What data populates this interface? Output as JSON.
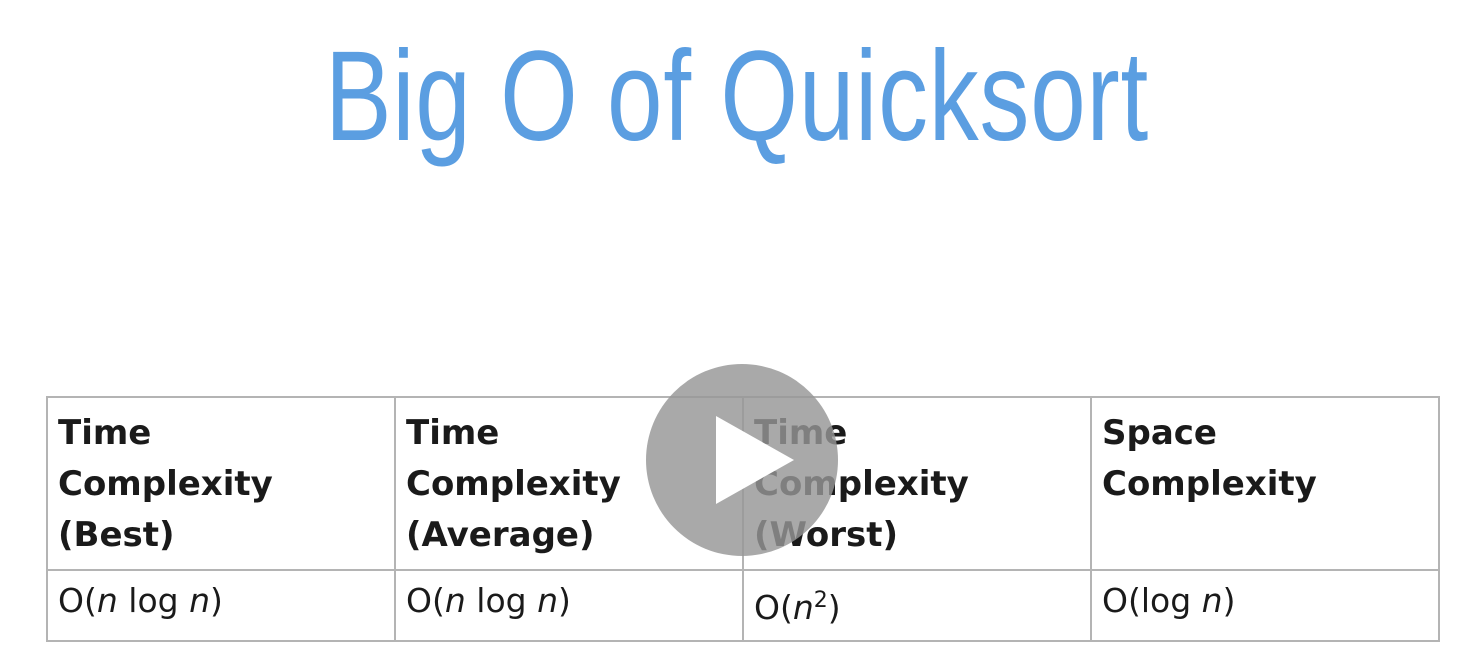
{
  "slide": {
    "title": "Big O of Quicksort"
  },
  "table": {
    "headers": [
      {
        "lines": [
          "Time",
          "Complexity",
          "(Best)"
        ]
      },
      {
        "lines": [
          "Time",
          "Complexity",
          "(Average)"
        ]
      },
      {
        "lines": [
          "Time",
          "Complexity",
          "(Worst)"
        ]
      },
      {
        "lines": [
          "Space",
          "Complexity"
        ]
      }
    ],
    "row": [
      {
        "prefix": "O(",
        "var1": "n",
        "mid": " log ",
        "var2": "n",
        "suffix": ")"
      },
      {
        "prefix": "O(",
        "var1": "n",
        "mid": " log ",
        "var2": "n",
        "suffix": ")"
      },
      {
        "prefix": "O(",
        "var1": "n",
        "sup": "2",
        "suffix": ")"
      },
      {
        "prefix": "O(log ",
        "var1": "n",
        "suffix": ")"
      }
    ]
  },
  "player": {
    "icon": "play-icon",
    "color": "#969696"
  }
}
